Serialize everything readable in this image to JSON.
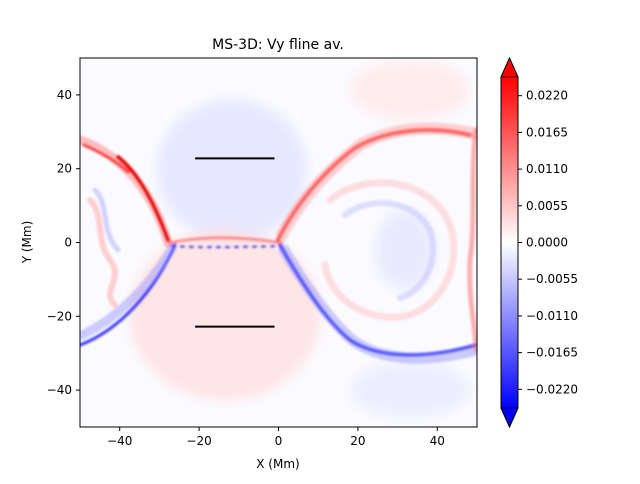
{
  "chart_data": {
    "type": "heatmap",
    "title": "MS-3D: Vy fline av.",
    "xlabel": "X (Mm)",
    "ylabel": "Y (Mm)",
    "xlim": [
      -50,
      50
    ],
    "ylim": [
      -50,
      50
    ],
    "x_ticks": [
      {
        "value": -40,
        "label": "−40"
      },
      {
        "value": -20,
        "label": "−20"
      },
      {
        "value": 0,
        "label": "0"
      },
      {
        "value": 20,
        "label": "20"
      },
      {
        "value": 40,
        "label": "40"
      }
    ],
    "y_ticks": [
      {
        "value": 40,
        "label": "40"
      },
      {
        "value": 20,
        "label": "20"
      },
      {
        "value": 0,
        "label": "0"
      },
      {
        "value": -20,
        "label": "−20"
      },
      {
        "value": -40,
        "label": "−40"
      }
    ],
    "colorbar": {
      "colormap": "bwr",
      "vmin": -0.0248,
      "vmax": 0.0248,
      "extend": "both",
      "low_color": "#0000ff",
      "mid_color": "#ffffff",
      "high_color": "#ff0000",
      "ticks": [
        {
          "value": 0.022,
          "label": "0.0220"
        },
        {
          "value": 0.0165,
          "label": "0.0165"
        },
        {
          "value": 0.011,
          "label": "0.0110"
        },
        {
          "value": 0.0055,
          "label": "0.0055"
        },
        {
          "value": 0.0,
          "label": "0.0000"
        },
        {
          "value": -0.0055,
          "label": "−0.0055"
        },
        {
          "value": -0.011,
          "label": "−0.0110"
        },
        {
          "value": -0.0165,
          "label": "−0.0165"
        },
        {
          "value": -0.022,
          "label": "−0.0220"
        }
      ]
    },
    "reference_lines": [
      {
        "name": "upper-line",
        "x": [
          -21,
          -1
        ],
        "y": [
          22.8,
          22.8
        ]
      },
      {
        "name": "lower-line",
        "x": [
          -21,
          -1
        ],
        "y": [
          -22.8,
          -22.8
        ]
      }
    ],
    "structures": [
      {
        "name": "left-loop",
        "center": [
          -65,
          0
        ],
        "radius": 47
      },
      {
        "name": "right-loop",
        "center": [
          28,
          0
        ],
        "radius": 31
      }
    ]
  }
}
